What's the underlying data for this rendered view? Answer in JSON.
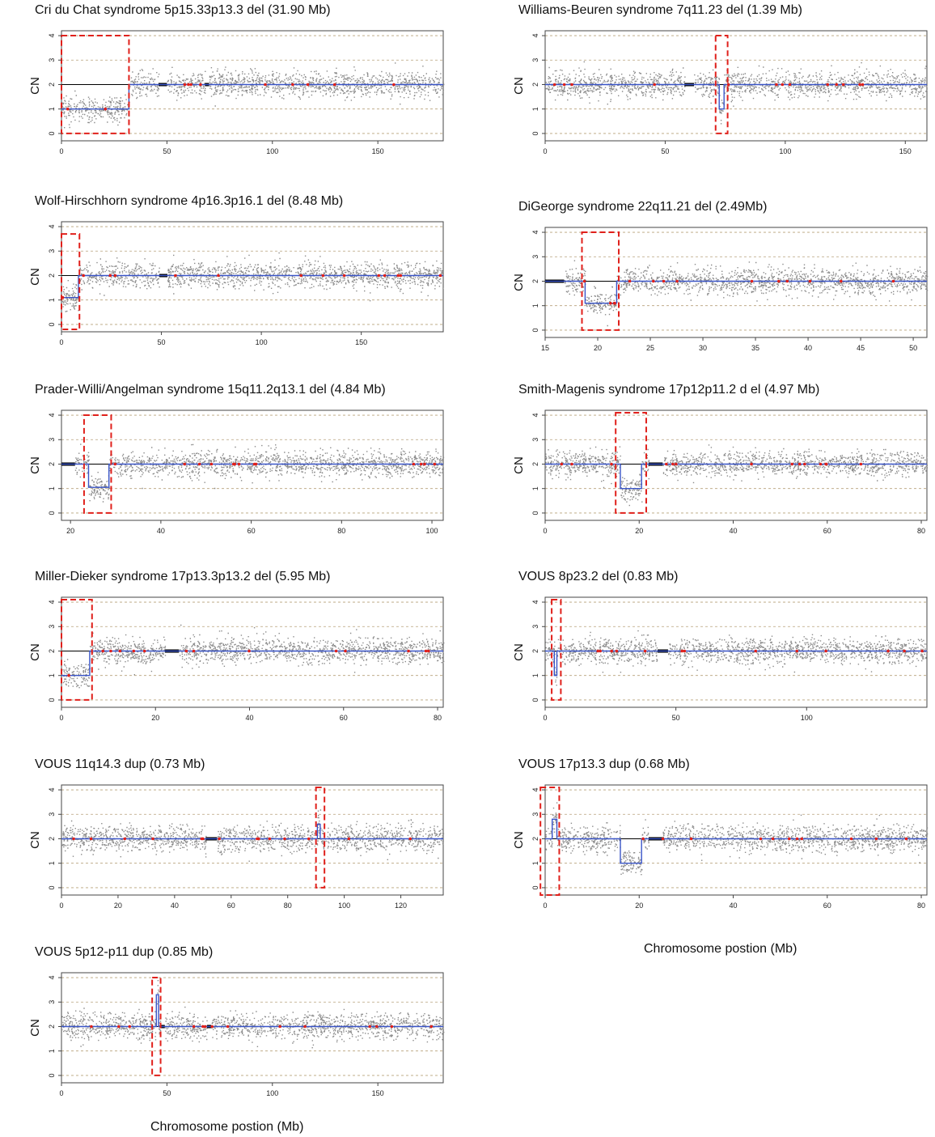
{
  "figure": {
    "x_axis_title": "Chromosome postion (Mb)",
    "colors": {
      "points": "#8a8a8a",
      "segment": "#3a55c8",
      "box": "#e0201b",
      "baseline": "#000000",
      "grid": "#b7a17a"
    }
  },
  "chart_data": [
    {
      "type": "scatter",
      "title": "Cri du Chat syndrome 5p15.33p13.3 del (31.90 Mb)",
      "ylabel": "CN",
      "xlim": [
        0,
        181
      ],
      "ylim": [
        0,
        4
      ],
      "xticks": [
        0,
        50,
        100,
        150
      ],
      "yticks": [
        0,
        1,
        2,
        3,
        4
      ],
      "segments": [
        {
          "x0": 0,
          "x1": 32,
          "cn": 1
        },
        {
          "x0": 32,
          "x1": 181,
          "cn": 2
        }
      ],
      "gaps": [
        [
          46,
          50
        ],
        [
          68,
          70
        ]
      ],
      "highlight": {
        "x0": 0,
        "x1": 32,
        "y0": 0,
        "y1": 4
      }
    },
    {
      "type": "scatter",
      "title": "Williams-Beuren syndrome 7q11.23 del (1.39 Mb)",
      "ylabel": "CN",
      "xlim": [
        0,
        159
      ],
      "ylim": [
        0,
        4
      ],
      "xticks": [
        0,
        50,
        100,
        150
      ],
      "yticks": [
        0,
        1,
        2,
        3,
        4
      ],
      "segments": [
        {
          "x0": 0,
          "x1": 72.5,
          "cn": 2
        },
        {
          "x0": 72.5,
          "x1": 74.5,
          "cn": 1
        },
        {
          "x0": 74.5,
          "x1": 159,
          "cn": 2
        }
      ],
      "gaps": [
        [
          58,
          62
        ]
      ],
      "highlight": {
        "x0": 71,
        "x1": 76,
        "y0": 0,
        "y1": 4
      }
    },
    {
      "type": "scatter",
      "title": "Wolf-Hirschhorn syndrome 4p16.3p16.1 del (8.48 Mb)",
      "ylabel": "CN",
      "xlim": [
        0,
        191
      ],
      "ylim": [
        0,
        4
      ],
      "xticks": [
        0,
        50,
        100,
        150
      ],
      "yticks": [
        0,
        1,
        2,
        3,
        4
      ],
      "segments": [
        {
          "x0": 0,
          "x1": 8.5,
          "cn": 1.1
        },
        {
          "x0": 8.5,
          "x1": 191,
          "cn": 2
        }
      ],
      "gaps": [
        [
          49,
          53
        ]
      ],
      "highlight": {
        "x0": 0,
        "x1": 9,
        "y0": -0.2,
        "y1": 3.7
      }
    },
    {
      "type": "scatter",
      "title": "DiGeorge syndrome 22q11.21 del (2.49Mb)",
      "ylabel": "CN",
      "xlim": [
        15,
        51.3
      ],
      "ylim": [
        0,
        4
      ],
      "xticks": [
        15,
        20,
        25,
        30,
        35,
        40,
        45,
        50
      ],
      "yticks": [
        0,
        1,
        2,
        3,
        4
      ],
      "segments": [
        {
          "x0": 15,
          "x1": 18.8,
          "cn": 2
        },
        {
          "x0": 18.8,
          "x1": 21.8,
          "cn": 1.1
        },
        {
          "x0": 21.8,
          "x1": 51.3,
          "cn": 2
        }
      ],
      "gaps": [
        [
          15,
          16.8
        ]
      ],
      "highlight": {
        "x0": 18.5,
        "x1": 22,
        "y0": 0,
        "y1": 4
      }
    },
    {
      "type": "scatter",
      "title": "Prader-Willi/Angelman syndrome 15q11.2q13.1 del (4.84 Mb)",
      "ylabel": "CN",
      "xlim": [
        18,
        102.5
      ],
      "ylim": [
        0,
        4
      ],
      "xticks": [
        20,
        40,
        60,
        80,
        100
      ],
      "yticks": [
        0,
        1,
        2,
        3,
        4
      ],
      "segments": [
        {
          "x0": 18,
          "x1": 24,
          "cn": 2
        },
        {
          "x0": 24,
          "x1": 28.5,
          "cn": 1.05
        },
        {
          "x0": 28.5,
          "x1": 102.5,
          "cn": 2
        }
      ],
      "gaps": [
        [
          18,
          21
        ]
      ],
      "highlight": {
        "x0": 23,
        "x1": 29,
        "y0": 0,
        "y1": 4
      }
    },
    {
      "type": "scatter",
      "title": "Smith-Magenis syndrome 17p12p11.2 d el (4.97 Mb)",
      "ylabel": "CN",
      "xlim": [
        0,
        81.2
      ],
      "ylim": [
        0,
        4
      ],
      "xticks": [
        0,
        20,
        40,
        60,
        80
      ],
      "yticks": [
        0,
        1,
        2,
        3,
        4
      ],
      "segments": [
        {
          "x0": 0,
          "x1": 16,
          "cn": 2
        },
        {
          "x0": 16,
          "x1": 20.5,
          "cn": 1
        },
        {
          "x0": 20.5,
          "x1": 81.2,
          "cn": 2
        }
      ],
      "gaps": [
        [
          22,
          25
        ]
      ],
      "highlight": {
        "x0": 15,
        "x1": 21.5,
        "y0": 0,
        "y1": 4.1
      }
    },
    {
      "type": "scatter",
      "title": "Miller-Dieker syndrome 17p13.3p13.2 del (5.95 Mb)",
      "ylabel": "CN",
      "xlim": [
        0,
        81.2
      ],
      "ylim": [
        0,
        4
      ],
      "xticks": [
        0,
        20,
        40,
        60,
        80
      ],
      "yticks": [
        0,
        1,
        2,
        3,
        4
      ],
      "segments": [
        {
          "x0": 0,
          "x1": 6,
          "cn": 1
        },
        {
          "x0": 6,
          "x1": 81.2,
          "cn": 2
        }
      ],
      "gaps": [
        [
          22,
          25
        ]
      ],
      "highlight": {
        "x0": 0,
        "x1": 6.5,
        "y0": 0,
        "y1": 4.1
      }
    },
    {
      "type": "scatter",
      "title": "VOUS 8p23.2 del (0.83 Mb)",
      "ylabel": "CN",
      "xlim": [
        0,
        146
      ],
      "ylim": [
        0,
        4
      ],
      "xticks": [
        0,
        50,
        100,
        150
      ],
      "yticks": [
        0,
        1,
        2,
        3,
        4
      ],
      "segments": [
        {
          "x0": 0,
          "x1": 3.5,
          "cn": 2
        },
        {
          "x0": 3.5,
          "x1": 4.5,
          "cn": 1
        },
        {
          "x0": 4.5,
          "x1": 146,
          "cn": 2
        }
      ],
      "gaps": [
        [
          43,
          47
        ]
      ],
      "highlight": {
        "x0": 2.5,
        "x1": 6,
        "y0": 0,
        "y1": 4.1
      }
    },
    {
      "type": "scatter",
      "title": "VOUS 11q14.3 dup (0.73 Mb)",
      "ylabel": "CN",
      "xlim": [
        0,
        135
      ],
      "ylim": [
        0,
        4
      ],
      "xticks": [
        0,
        20,
        40,
        60,
        80,
        100,
        120,
        140
      ],
      "yticks": [
        0,
        1,
        2,
        3,
        4
      ],
      "segments": [
        {
          "x0": 0,
          "x1": 90.5,
          "cn": 2
        },
        {
          "x0": 90.5,
          "x1": 91.5,
          "cn": 2.6
        },
        {
          "x0": 91.5,
          "x1": 135,
          "cn": 2
        }
      ],
      "gaps": [
        [
          51,
          55
        ]
      ],
      "highlight": {
        "x0": 90,
        "x1": 93,
        "y0": 0,
        "y1": 4.1
      }
    },
    {
      "type": "scatter",
      "title": "VOUS 17p13.3 dup (0.68 Mb)",
      "ylabel": "CN",
      "xlim": [
        0,
        81.2
      ],
      "ylim": [
        0,
        4
      ],
      "xticks": [
        0,
        20,
        40,
        60,
        80
      ],
      "yticks": [
        0,
        1,
        2,
        3,
        4
      ],
      "segments": [
        {
          "x0": 0,
          "x1": 1.5,
          "cn": 2
        },
        {
          "x0": 1.5,
          "x1": 2.5,
          "cn": 2.8
        },
        {
          "x0": 2.5,
          "x1": 16,
          "cn": 2
        },
        {
          "x0": 16,
          "x1": 20.5,
          "cn": 1
        },
        {
          "x0": 20.5,
          "x1": 81.2,
          "cn": 2
        }
      ],
      "gaps": [
        [
          22,
          25
        ]
      ],
      "highlight": {
        "x0": -1,
        "x1": 3,
        "y0": -0.3,
        "y1": 4.1
      }
    },
    {
      "type": "scatter",
      "title": "VOUS 5p12-p11 dup (0.85 Mb)",
      "ylabel": "CN",
      "xlim": [
        0,
        181
      ],
      "ylim": [
        0,
        4
      ],
      "xticks": [
        0,
        50,
        100,
        150
      ],
      "yticks": [
        0,
        1,
        2,
        3,
        4
      ],
      "segments": [
        {
          "x0": 0,
          "x1": 45,
          "cn": 2
        },
        {
          "x0": 45,
          "x1": 46,
          "cn": 3.3
        },
        {
          "x0": 46,
          "x1": 181,
          "cn": 2
        }
      ],
      "gaps": [
        [
          47,
          49
        ],
        [
          69,
          71
        ]
      ],
      "highlight": {
        "x0": 43,
        "x1": 47,
        "y0": 0,
        "y1": 4
      }
    }
  ]
}
